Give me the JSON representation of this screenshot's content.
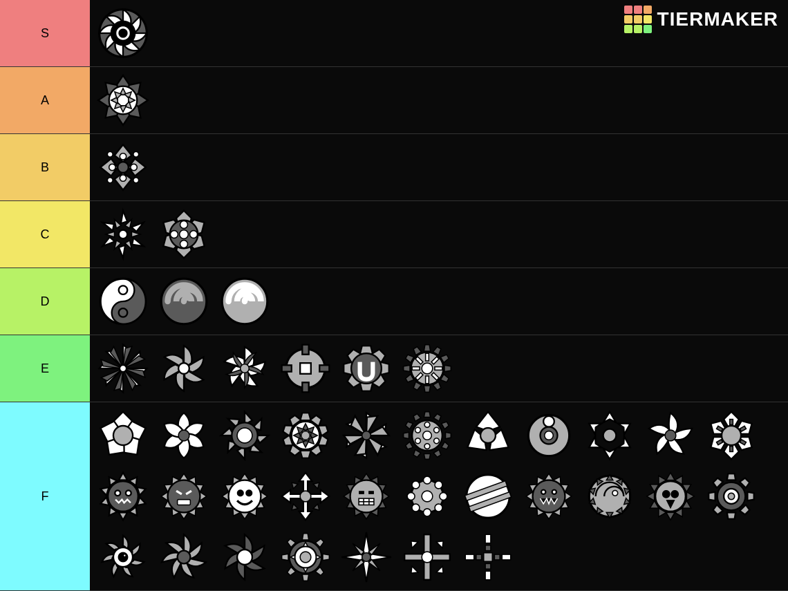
{
  "logo": {
    "text": "TIERMAKER",
    "grid_colors": [
      "#ef7f7f",
      "#ef7f7f",
      "#f2a966",
      "#f2cc66",
      "#f2cc66",
      "#f2e766",
      "#b7f266",
      "#b7f266",
      "#7ef27e"
    ]
  },
  "row_height_single": 92,
  "item_size": 84,
  "tiers": [
    {
      "label": "S",
      "color": "#ef7f7f",
      "items": [
        "spiral-saw"
      ]
    },
    {
      "label": "A",
      "color": "#f2a966",
      "items": [
        "burst-flower"
      ]
    },
    {
      "label": "B",
      "color": "#f2cc66",
      "items": [
        "orb-shuriken"
      ]
    },
    {
      "label": "C",
      "color": "#f2e766",
      "items": [
        "shard-star",
        "dot-gear"
      ]
    },
    {
      "label": "D",
      "color": "#b7f266",
      "items": [
        "yinyang",
        "swirl-dark",
        "swirl-light"
      ]
    },
    {
      "label": "E",
      "color": "#7ef27e",
      "items": [
        "pinwheel-thin",
        "fan-blades",
        "ribbon-saw",
        "puzzle-gear",
        "cog-u",
        "sun-gear"
      ]
    },
    {
      "label": "F",
      "color": "#7efbff",
      "items": [
        "chunky-saw",
        "petal-saw",
        "blade-ring",
        "flower-gear",
        "windmill",
        "atom-gear",
        "tri-saw",
        "ring-orb",
        "arrow-fan",
        "wave-saw",
        "notch-saw",
        "spike-creature",
        "face-angry",
        "face-goofy",
        "quad-arrow",
        "face-grit",
        "bead-ring",
        "stripe-disc",
        "monster-open",
        "creature-swirl",
        "skull-spike",
        "hex-ring",
        "eye-tentacle",
        "vortex-petals",
        "swirl-saw",
        "target-spin",
        "compass-cross",
        "plus-blade",
        "pixel-cross"
      ]
    }
  ],
  "colors": {
    "bg": "#0a0a0a",
    "border": "#333333",
    "icon_light": "#ffffff",
    "icon_mid": "#b0b0b0",
    "icon_dark": "#5a5a5a",
    "icon_stroke": "#000000"
  }
}
